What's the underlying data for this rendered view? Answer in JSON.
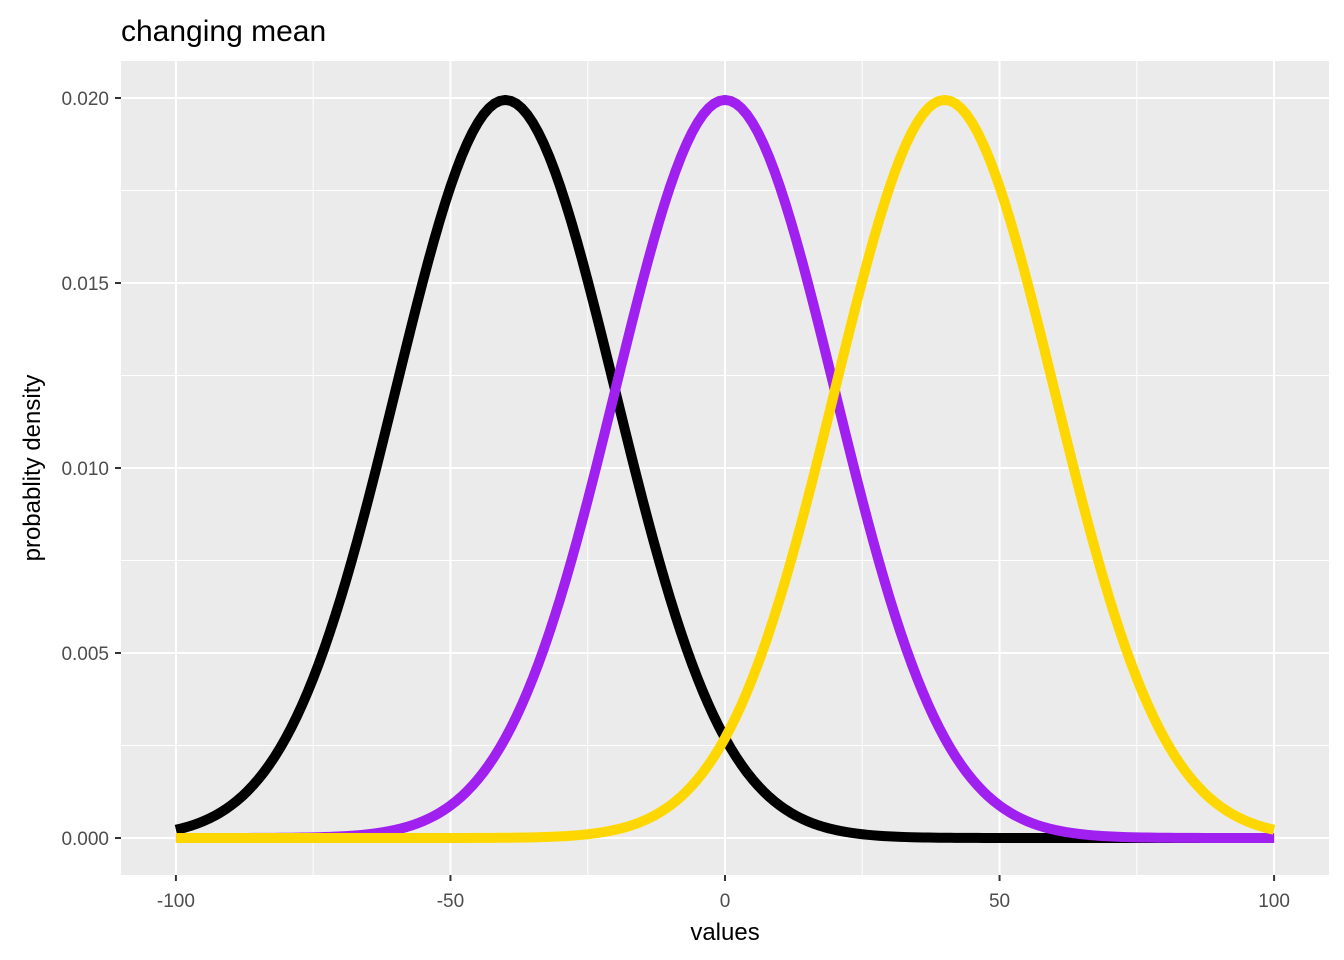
{
  "chart_data": {
    "type": "line",
    "title": "changing mean",
    "xlabel": "values",
    "ylabel": "probablity density",
    "xlim": [
      -110,
      110
    ],
    "ylim": [
      -0.001,
      0.021
    ],
    "x_ticks": [
      -100,
      -50,
      0,
      50,
      100
    ],
    "x_tick_labels": [
      "-100",
      "-50",
      "0",
      "50",
      "100"
    ],
    "y_ticks": [
      0.0,
      0.005,
      0.01,
      0.015,
      0.02
    ],
    "y_tick_labels": [
      "0.000",
      "0.005",
      "0.010",
      "0.015",
      "0.020"
    ],
    "x_range": [
      -100,
      100
    ],
    "grid": true,
    "panel_background": "#ebebeb",
    "series": [
      {
        "mean": -40,
        "sd": 20,
        "color": "#000000"
      },
      {
        "mean": 0,
        "sd": 20,
        "color": "#a020f0"
      },
      {
        "mean": 40,
        "sd": 20,
        "color": "#ffd700"
      }
    ]
  }
}
